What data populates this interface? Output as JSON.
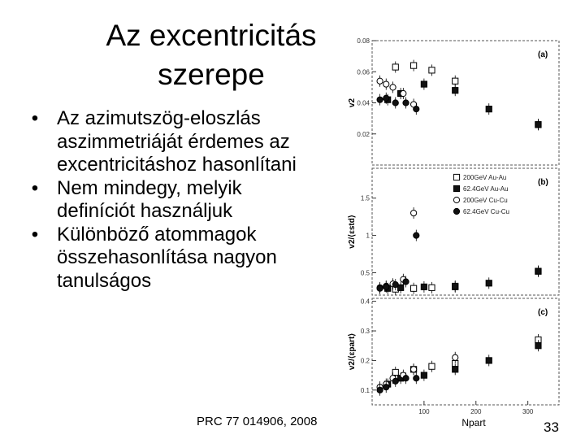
{
  "slide": {
    "title_line1": "Az excentricitás",
    "title_line2": "szerepe",
    "bullets": [
      "Az azimutszög-eloszlás aszimmetriáját érdemes az excentricitáshoz hasonlítani",
      "Nem mindegy, melyik definíciót használjuk",
      "Különböző atommagok összehasonlítása nagyon tanulságos"
    ],
    "reference": "PRC 77 014906, 2008",
    "page_number": "33"
  },
  "chart_data": [
    {
      "type": "scatter",
      "panel_label": "(a)",
      "ylabel": "v2",
      "ylim": [
        0,
        0.08
      ],
      "yticks": [
        "0.02",
        "0.04",
        "0.06",
        "0.08"
      ],
      "xlim": [
        0,
        360
      ],
      "grid": false,
      "series": [
        {
          "name": "200GeV Au-Au",
          "marker": "open-square",
          "x": [
            45,
            80,
            115,
            160,
            320
          ],
          "y": [
            0.063,
            0.064,
            0.061,
            0.054,
            0.026
          ]
        },
        {
          "name": "62.4GeV Au-Au",
          "marker": "filled-square",
          "x": [
            30,
            55,
            100,
            160,
            225,
            320
          ],
          "y": [
            0.042,
            0.046,
            0.052,
            0.048,
            0.036,
            0.026
          ]
        },
        {
          "name": "200GeV Cu-Cu",
          "marker": "open-circle",
          "x": [
            15,
            27,
            40,
            60,
            80
          ],
          "y": [
            0.054,
            0.052,
            0.05,
            0.046,
            0.039
          ]
        },
        {
          "name": "62.4GeV Cu-Cu",
          "marker": "filled-circle",
          "x": [
            15,
            27,
            45,
            65,
            85
          ],
          "y": [
            0.042,
            0.043,
            0.04,
            0.04,
            0.036
          ]
        }
      ]
    },
    {
      "type": "scatter",
      "panel_label": "(b)",
      "ylabel": "v2/⟨εstd⟩",
      "ylim": [
        0.2,
        1.9
      ],
      "yticks": [
        "0.5",
        "1",
        "1.5"
      ],
      "xlim": [
        0,
        360
      ],
      "grid": false,
      "legend": {
        "position": "top-right",
        "entries": [
          "200GeV Au-Au",
          "62.4GeV Au-Au",
          "200GeV Cu-Cu",
          "62.4GeV Cu-Cu"
        ]
      },
      "series": [
        {
          "name": "200GeV Au-Au",
          "marker": "open-square",
          "x": [
            45,
            80,
            115,
            160,
            320
          ],
          "y": [
            0.28,
            0.29,
            0.3,
            0.31,
            0.52
          ]
        },
        {
          "name": "62.4GeV Au-Au",
          "marker": "filled-square",
          "x": [
            30,
            55,
            100,
            160,
            225,
            320
          ],
          "y": [
            0.29,
            0.3,
            0.31,
            0.32,
            0.36,
            0.52
          ]
        },
        {
          "name": "200GeV Cu-Cu",
          "marker": "open-circle",
          "x": [
            15,
            27,
            40,
            60,
            80
          ],
          "y": [
            0.3,
            0.32,
            0.35,
            0.41,
            1.3
          ]
        },
        {
          "name": "62.4GeV Cu-Cu",
          "marker": "filled-circle",
          "x": [
            15,
            27,
            45,
            65,
            85
          ],
          "y": [
            0.29,
            0.31,
            0.34,
            0.38,
            1.0
          ]
        }
      ]
    },
    {
      "type": "scatter",
      "panel_label": "(c)",
      "ylabel": "v2/⟨εpart⟩",
      "xlabel": "Npart",
      "ylim": [
        0.05,
        0.41
      ],
      "yticks": [
        "0.1",
        "0.2",
        "0.3",
        "0.4"
      ],
      "xticks": [
        "100",
        "200",
        "300"
      ],
      "xlim": [
        0,
        360
      ],
      "grid": false,
      "series": [
        {
          "name": "200GeV Au-Au",
          "marker": "open-square",
          "x": [
            45,
            80,
            115,
            160,
            320
          ],
          "y": [
            0.16,
            0.17,
            0.18,
            0.19,
            0.27
          ]
        },
        {
          "name": "62.4GeV Au-Au",
          "marker": "filled-square",
          "x": [
            30,
            55,
            100,
            160,
            225,
            320
          ],
          "y": [
            0.12,
            0.14,
            0.15,
            0.17,
            0.2,
            0.25
          ]
        },
        {
          "name": "200GeV Cu-Cu",
          "marker": "open-circle",
          "x": [
            15,
            27,
            40,
            60,
            80,
            160
          ],
          "y": [
            0.11,
            0.12,
            0.14,
            0.15,
            0.17,
            0.21
          ]
        },
        {
          "name": "62.4GeV Cu-Cu",
          "marker": "filled-circle",
          "x": [
            15,
            27,
            45,
            65,
            85
          ],
          "y": [
            0.1,
            0.11,
            0.13,
            0.14,
            0.14
          ]
        }
      ]
    }
  ]
}
